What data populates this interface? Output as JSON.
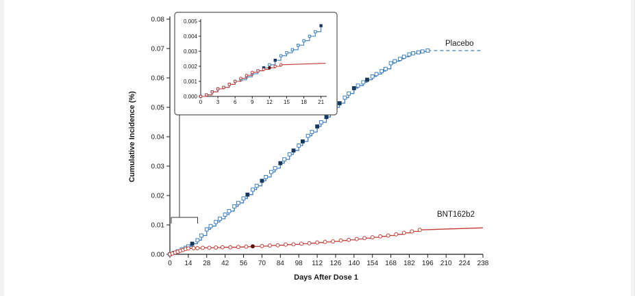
{
  "chart_data": {
    "type": "line",
    "title": "",
    "xlabel": "Days After Dose 1",
    "ylabel": "Cumulative Incidence (%)",
    "xlim": [
      0,
      238
    ],
    "ylim": [
      0,
      0.08
    ],
    "x_ticks": [
      0,
      14,
      28,
      42,
      56,
      70,
      84,
      98,
      112,
      126,
      140,
      154,
      168,
      182,
      196,
      210,
      224,
      238
    ],
    "y_ticks": [
      0,
      0.01,
      0.02,
      0.03,
      0.04,
      0.05,
      0.06,
      0.07,
      0.08
    ],
    "y_tick_decimals": 2,
    "grid": false,
    "legend_position": "curve-end-labels",
    "series": [
      {
        "name": "Placebo",
        "color": "#3b7ec1",
        "fill_color": "#17375e",
        "marker": "square",
        "points": [
          [
            0,
            0
          ],
          [
            3,
            0.0005
          ],
          [
            6,
            0.001
          ],
          [
            9,
            0.0016
          ],
          [
            12,
            0.0022
          ],
          [
            14,
            0.0027
          ],
          [
            17,
            0.0036
          ],
          [
            21,
            0.0048
          ],
          [
            24,
            0.0064
          ],
          [
            28,
            0.0085
          ],
          [
            31,
            0.0096
          ],
          [
            35,
            0.011
          ],
          [
            38,
            0.0121
          ],
          [
            42,
            0.0135
          ],
          [
            45,
            0.0147
          ],
          [
            49,
            0.0163
          ],
          [
            52,
            0.0175
          ],
          [
            56,
            0.019
          ],
          [
            59,
            0.0203
          ],
          [
            63,
            0.022
          ],
          [
            66,
            0.0233
          ],
          [
            70,
            0.025
          ],
          [
            73,
            0.0263
          ],
          [
            77,
            0.028
          ],
          [
            80,
            0.0293
          ],
          [
            84,
            0.031
          ],
          [
            87,
            0.0323
          ],
          [
            91,
            0.034
          ],
          [
            94,
            0.0353
          ],
          [
            98,
            0.037
          ],
          [
            101,
            0.0384
          ],
          [
            105,
            0.0403
          ],
          [
            108,
            0.0416
          ],
          [
            112,
            0.0435
          ],
          [
            115,
            0.0449
          ],
          [
            119,
            0.0467
          ],
          [
            122,
            0.0481
          ],
          [
            126,
            0.05
          ],
          [
            129,
            0.0514
          ],
          [
            133,
            0.0533
          ],
          [
            136,
            0.0547
          ],
          [
            140,
            0.0565
          ],
          [
            143,
            0.0574
          ],
          [
            147,
            0.0585
          ],
          [
            150,
            0.0594
          ],
          [
            154,
            0.0605
          ],
          [
            157,
            0.0613
          ],
          [
            161,
            0.0623
          ],
          [
            164,
            0.0631
          ],
          [
            168,
            0.065
          ],
          [
            171,
            0.0657
          ],
          [
            175,
            0.0665
          ],
          [
            178,
            0.0672
          ],
          [
            182,
            0.068
          ],
          [
            185,
            0.0684
          ],
          [
            189,
            0.0687
          ],
          [
            192,
            0.069
          ],
          [
            196,
            0.0693
          ]
        ],
        "filled_days": [
          17,
          59,
          70,
          84,
          94,
          101,
          112,
          119,
          129,
          140,
          150
        ],
        "tail": {
          "style": "dashed",
          "end": [
            238,
            0.0693
          ]
        }
      },
      {
        "name": "BNT162b2",
        "color": "#c13a31",
        "fill_color": "#5c120e",
        "marker": "circle",
        "points": [
          [
            0,
            0
          ],
          [
            2,
            0.0003
          ],
          [
            4,
            0.0006
          ],
          [
            6,
            0.0009
          ],
          [
            8,
            0.0012
          ],
          [
            10,
            0.0015
          ],
          [
            12,
            0.0018
          ],
          [
            14,
            0.002
          ],
          [
            18,
            0.0021
          ],
          [
            21,
            0.0021
          ],
          [
            25,
            0.0022
          ],
          [
            30,
            0.0022
          ],
          [
            35,
            0.0023
          ],
          [
            40,
            0.0024
          ],
          [
            46,
            0.0024
          ],
          [
            52,
            0.0025
          ],
          [
            58,
            0.0026
          ],
          [
            63,
            0.0027
          ],
          [
            70,
            0.0028
          ],
          [
            76,
            0.003
          ],
          [
            82,
            0.0031
          ],
          [
            88,
            0.0033
          ],
          [
            94,
            0.0034
          ],
          [
            100,
            0.0036
          ],
          [
            106,
            0.0038
          ],
          [
            112,
            0.004
          ],
          [
            118,
            0.0042
          ],
          [
            124,
            0.0044
          ],
          [
            130,
            0.0047
          ],
          [
            136,
            0.0049
          ],
          [
            142,
            0.0052
          ],
          [
            148,
            0.0055
          ],
          [
            154,
            0.0058
          ],
          [
            160,
            0.0061
          ],
          [
            166,
            0.0064
          ],
          [
            172,
            0.0068
          ],
          [
            178,
            0.0073
          ],
          [
            184,
            0.0078
          ],
          [
            190,
            0.0083
          ]
        ],
        "filled_days": [
          63
        ],
        "tail": {
          "style": "solid",
          "end": [
            238,
            0.009
          ]
        }
      }
    ],
    "inset": {
      "xlim": [
        0,
        22
      ],
      "ylim": [
        0,
        0.005
      ],
      "x_ticks": [
        0,
        3,
        6,
        9,
        12,
        15,
        18,
        21
      ],
      "y_ticks": [
        0,
        0.001,
        0.002,
        0.003,
        0.004,
        0.005
      ],
      "y_tick_decimals": 3,
      "series": [
        {
          "name": "Placebo",
          "color": "#3b7ec1",
          "fill_color": "#17375e",
          "marker": "square",
          "points": [
            [
              0,
              0
            ],
            [
              1,
              0.0001
            ],
            [
              2,
              0.0003
            ],
            [
              3,
              0.0005
            ],
            [
              4,
              0.0006
            ],
            [
              5,
              0.0008
            ],
            [
              6,
              0.001
            ],
            [
              7,
              0.0011
            ],
            [
              8,
              0.0013
            ],
            [
              9,
              0.0015
            ],
            [
              10,
              0.0017
            ],
            [
              11,
              0.0019
            ],
            [
              12,
              0.0021
            ],
            [
              13,
              0.0024
            ],
            [
              14,
              0.0027
            ],
            [
              15,
              0.0029
            ],
            [
              16,
              0.0031
            ],
            [
              17,
              0.0034
            ],
            [
              18,
              0.0037
            ],
            [
              19,
              0.004
            ],
            [
              20,
              0.0043
            ],
            [
              21,
              0.0047
            ]
          ],
          "filled_days": [
            11,
            13,
            21
          ]
        },
        {
          "name": "BNT162b2",
          "color": "#c13a31",
          "fill_color": "#5c120e",
          "marker": "circle",
          "points": [
            [
              0,
              0
            ],
            [
              1,
              0.0001
            ],
            [
              2,
              0.0003
            ],
            [
              3,
              0.0005
            ],
            [
              4,
              0.0006
            ],
            [
              5,
              0.0008
            ],
            [
              6,
              0.001
            ],
            [
              7,
              0.0012
            ],
            [
              8,
              0.0014
            ],
            [
              9,
              0.0016
            ],
            [
              10,
              0.0017
            ],
            [
              11,
              0.0018
            ],
            [
              12,
              0.0019
            ],
            [
              13,
              0.002
            ],
            [
              14,
              0.0021
            ]
          ],
          "filled_days": [
            12
          ],
          "tail": {
            "style": "solid",
            "end": [
              21.8,
              0.0022
            ]
          }
        }
      ]
    }
  }
}
